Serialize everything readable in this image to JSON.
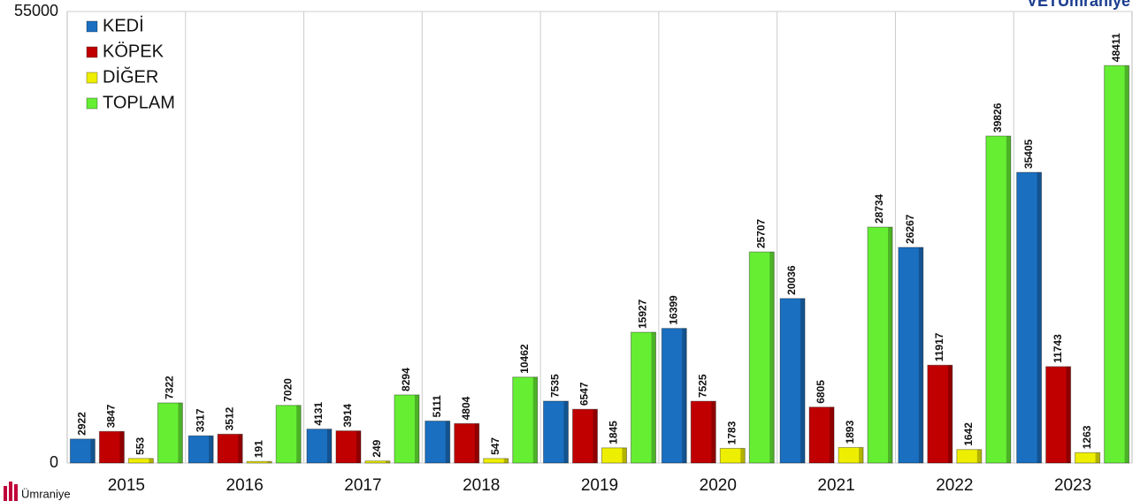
{
  "chart_data": {
    "type": "bar",
    "categories": [
      "2015",
      "2016",
      "2017",
      "2018",
      "2019",
      "2020",
      "2021",
      "2022",
      "2023"
    ],
    "series": [
      {
        "name": "KEDİ",
        "color": "#1a6fc0",
        "values": [
          2922,
          3317,
          4131,
          5111,
          7535,
          16399,
          20036,
          26267,
          35405
        ]
      },
      {
        "name": "KÖPEK",
        "color": "#c00000",
        "values": [
          3847,
          3512,
          3914,
          4804,
          6547,
          7525,
          6805,
          11917,
          11743
        ]
      },
      {
        "name": "DİĞER",
        "color": "#eeee00",
        "values": [
          553,
          191,
          249,
          547,
          1845,
          1783,
          1893,
          1642,
          1263
        ]
      },
      {
        "name": "TOPLAM",
        "color": "#66ee33",
        "values": [
          7322,
          7020,
          8294,
          10462,
          15927,
          25707,
          28734,
          39826,
          48411
        ]
      }
    ],
    "ylim": [
      0,
      55000
    ],
    "yticks": [
      0,
      55000
    ],
    "grid": true,
    "legend": "top-left",
    "logo_top": "VETÜmraniye",
    "logo_bottom": "Ümraniye"
  }
}
